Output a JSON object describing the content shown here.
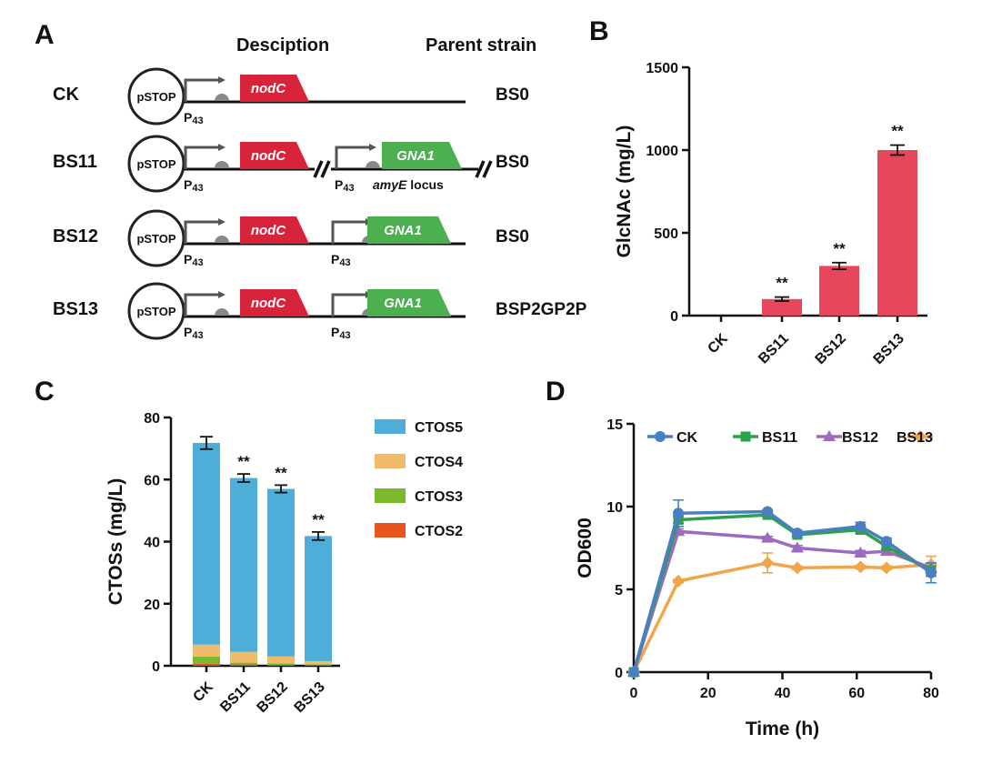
{
  "panels": {
    "a": "A",
    "b": "B",
    "c": "C",
    "d": "D"
  },
  "panel_a": {
    "header_description": "Desciption",
    "header_parent": "Parent strain",
    "plasmid_label": "pSTOP",
    "promoter_base": "P",
    "promoter_sub": "43",
    "locus_italic": "amyE",
    "locus_rest": " locus",
    "rows": [
      {
        "label": "CK",
        "gene1": "nodC",
        "parent": "BS0"
      },
      {
        "label": "BS11",
        "gene1": "nodC",
        "gene2": "GNA1",
        "parent": "BS0"
      },
      {
        "label": "BS12",
        "gene1": "nodC",
        "gene2": "GNA1",
        "parent": "BS0"
      },
      {
        "label": "BS13",
        "gene1": "nodC",
        "gene2": "GNA1",
        "parent": "BSP2GP2P"
      }
    ],
    "colors": {
      "nodC": "#d8243a",
      "GNA1": "#4cb050"
    }
  },
  "chart_data": [
    {
      "panel": "B",
      "type": "bar",
      "categories": [
        "CK",
        "BS11",
        "BS12",
        "BS13"
      ],
      "values": [
        0,
        100,
        300,
        1000
      ],
      "errors": [
        0,
        12,
        20,
        30
      ],
      "significance": [
        "",
        "**",
        "**",
        "**"
      ],
      "ylabel": "GlcNAc (mg/L)",
      "ylim": [
        0,
        1500
      ],
      "yticks": [
        0,
        500,
        1000,
        1500
      ],
      "color": "#e8475b"
    },
    {
      "panel": "C",
      "type": "bar",
      "stacked": true,
      "categories": [
        "CK",
        "BS11",
        "BS12",
        "BS13"
      ],
      "series": [
        {
          "name": "CTOS2",
          "color": "#e8541e",
          "values": [
            0.6,
            0.4,
            0.3,
            0.2
          ]
        },
        {
          "name": "CTOS3",
          "color": "#7cb82e",
          "values": [
            2.4,
            0.6,
            0.5,
            0.3
          ]
        },
        {
          "name": "CTOS4",
          "color": "#f2bb6c",
          "values": [
            3.8,
            3.5,
            2.2,
            1.0
          ]
        },
        {
          "name": "CTOS5",
          "color": "#4faed8",
          "values": [
            65.0,
            56.0,
            54.0,
            40.3
          ]
        }
      ],
      "errors": [
        2.0,
        1.3,
        1.2,
        1.3
      ],
      "significance": [
        "",
        "**",
        "**",
        "**"
      ],
      "ylabel": "CTOSs (mg/L)",
      "ylim": [
        0,
        80
      ],
      "yticks": [
        0,
        20,
        40,
        60,
        80
      ],
      "legend_order": [
        "CTOS5",
        "CTOS4",
        "CTOS3",
        "CTOS2"
      ]
    },
    {
      "panel": "D",
      "type": "line",
      "xlabel": "Time (h)",
      "ylabel": "OD600",
      "xlim": [
        0,
        80
      ],
      "ylim": [
        0,
        15
      ],
      "xticks": [
        0,
        20,
        40,
        60,
        80
      ],
      "yticks": [
        0,
        5,
        10,
        15
      ],
      "series": [
        {
          "name": "CK",
          "color": "#4a7fc4",
          "marker": "circle",
          "x": [
            0,
            12,
            36,
            44,
            61,
            68,
            80
          ],
          "y": [
            0,
            9.6,
            9.7,
            8.4,
            8.8,
            7.9,
            6.0
          ],
          "err": [
            0,
            0.8,
            0.1,
            0.15,
            0.25,
            0.2,
            0.6
          ]
        },
        {
          "name": "BS11",
          "color": "#2ca04a",
          "marker": "square",
          "x": [
            0,
            12,
            36,
            44,
            61,
            68,
            80
          ],
          "y": [
            0,
            9.2,
            9.5,
            8.3,
            8.6,
            7.6,
            6.1
          ],
          "err": [
            0,
            0.2,
            0.1,
            0.15,
            0.2,
            0.2,
            0.3
          ]
        },
        {
          "name": "BS12",
          "color": "#9b6bbf",
          "marker": "triangle",
          "x": [
            0,
            12,
            36,
            44,
            61,
            68,
            80
          ],
          "y": [
            0,
            8.5,
            8.1,
            7.5,
            7.2,
            7.3,
            6.3
          ],
          "err": [
            0,
            0.15,
            0.1,
            0.15,
            0.15,
            0.15,
            0.3
          ]
        },
        {
          "name": "BS13",
          "color": "#f0a54a",
          "marker": "diamond",
          "x": [
            0,
            12,
            36,
            44,
            61,
            68,
            80
          ],
          "y": [
            0,
            5.5,
            6.6,
            6.3,
            6.35,
            6.3,
            6.5
          ],
          "err": [
            0,
            0.1,
            0.6,
            0.1,
            0.1,
            0.1,
            0.5
          ]
        }
      ]
    }
  ]
}
